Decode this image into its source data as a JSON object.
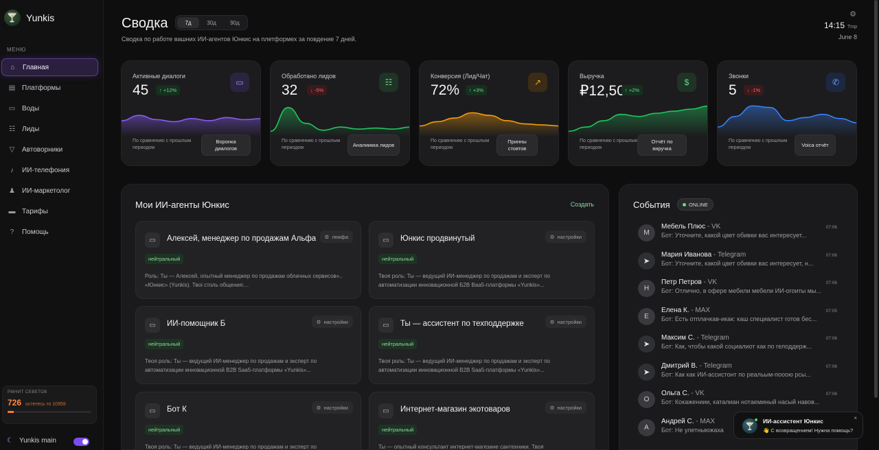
{
  "brand": {
    "name": "Yunkis",
    "logo_icon": "cocktail-logo-icon"
  },
  "sidebar": {
    "menu_title": "МЕНЮ",
    "items": [
      {
        "label": "Главная",
        "icon": "home-icon",
        "active": true
      },
      {
        "label": "Платформы",
        "icon": "store-icon"
      },
      {
        "label": "Воды",
        "icon": "monitor-icon"
      },
      {
        "label": "Лиды",
        "icon": "users-icon"
      },
      {
        "label": "Автоворники",
        "icon": "funnel-icon"
      },
      {
        "label": "ИИ-телефония",
        "icon": "mic-icon"
      },
      {
        "label": "ИИ-маркетолог",
        "icon": "person-icon"
      },
      {
        "label": "Тарифы",
        "icon": "card-icon"
      },
      {
        "label": "Помощь",
        "icon": "help-icon"
      }
    ],
    "limit": {
      "title": "РМНИТ СЕВЕТОВ",
      "value": "726",
      "text": "остетесь то 10959",
      "fill": 0.07
    },
    "workspace": {
      "label": "Yunkis main",
      "toggle_on": true
    }
  },
  "header": {
    "title": "Сводка",
    "tabs": [
      "7д",
      "30д",
      "90д"
    ],
    "active_tab": "7д",
    "subtitle": "Сводка по работе вашних ИИ-агентов Юнкис на плетформех за повдение 7 дней.",
    "time": "14:15",
    "temp_label": "Tmp",
    "date": "June 8"
  },
  "kpis": [
    {
      "label": "Активные диалоги",
      "value": "45",
      "delta": "↑ +12%",
      "trend": "up",
      "icon": "monitor-icon",
      "icon_bg": "#2b2440",
      "icon_color": "#a78bfa",
      "color": "#8b5cf6",
      "compare": "По сравнению с прошлым периодом",
      "button": "Воронка диалогов"
    },
    {
      "label": "Обработано лидов",
      "value": "32",
      "delta": "↓ -5%",
      "trend": "down",
      "icon": "users-icon",
      "icon_bg": "#1f3326",
      "icon_color": "#6fd48a",
      "color": "#22c55e",
      "compare": "По сравнению с прошлым периодом",
      "button": "Аналиикка лидов"
    },
    {
      "label": "Конверсия (Лид/Чат)",
      "value": "72%",
      "delta": "↑ +3%",
      "trend": "up",
      "icon": "trending-up-icon",
      "icon_bg": "#3a2c16",
      "icon_color": "#f5a524",
      "color": "#f59e0b",
      "compare": "По сравнению с прошлым периодом",
      "button": "Принны стовтов"
    },
    {
      "label": "Выручка",
      "value": "₽12,500",
      "delta": "↑ +2%",
      "trend": "up",
      "icon": "dollar-icon",
      "icon_bg": "#1f3326",
      "icon_color": "#6fd48a",
      "color": "#22c55e",
      "compare": "По сравнению с прошлым периодом",
      "button": "Отчёт по виручка"
    },
    {
      "label": "Звонки",
      "value": "5",
      "delta": "↓ -1%",
      "trend": "down",
      "icon": "phone-icon",
      "icon_bg": "#1d2740",
      "icon_color": "#6ea0ff",
      "color": "#3b82f6",
      "compare": "По сравнению с прошлым периодом",
      "button": "Voica отчёт"
    }
  ],
  "agents": {
    "title": "Мои ИИ-агенты Юнкис",
    "create_label": "Создать",
    "items": [
      {
        "name": "Алексей, менеджер по продажам Альфа",
        "settings": "люкфа",
        "tag": "нейтральный",
        "desc": "Роль: Ты — Алексей, опытный менеджер по продажам облачных сервисов».. «Юнкис» (Yunkis). Твоі столь общения:..."
      },
      {
        "name": "Юнкис продвинутый",
        "settings": "настройки",
        "tag": "нейтральный",
        "desc": "Твоя роль: Ты — ведущий ИИ-менеджер по продажам и эксперт по автоматизации инновационной Б2В Ваа5-платформы «Yunkis»..."
      },
      {
        "name": "ИИ-помощник Б",
        "settings": "настройки",
        "tag": "нейтральный",
        "desc": "Теоя роль: Ты — ведущий ИИ-менеджер по продажам и эксперт по автоматизации инновационной В2В Saa5-платформы «Yunkis»..."
      },
      {
        "name": "Ты — ассистент по техподдержке",
        "settings": "настройки",
        "tag": "нейтральный",
        "desc": "Твоя роль: Ты — ведущий ИИ-менеджер по продажам и эксперт по автоматизации инновационной В2В Saa5-платформы «Yunkis»..."
      },
      {
        "name": "Бот К",
        "settings": "настройки",
        "tag": "нейтральный",
        "desc": "Твоя роль: Ты — ведущий ИИ-менеджер по продажам и эксперт по"
      },
      {
        "name": "Интернет-магазин экотоваров",
        "settings": "настройки",
        "tag": "нейтральный",
        "desc": "Ты — опытный консультант интернет-магезине сантехники. Твоя"
      }
    ]
  },
  "events": {
    "title": "События",
    "status": "ONLINE",
    "items": [
      {
        "avatar": "M",
        "name": "Мебель Плюс",
        "platform": " - VK",
        "message": "Бот: Уточните, какой цвет обивки вас интересует...",
        "time": "07:06",
        "type": "letter"
      },
      {
        "avatar": "➤",
        "name": "Мария Иванова",
        "platform": " - Telegram",
        "message": "Бот: Уточните, какой цвет обивки вас интересует, н...",
        "time": "07:06",
        "type": "tg"
      },
      {
        "avatar": "Н",
        "name": "Петр Петров",
        "platform": " - VK",
        "message": "Бот: Отлично, в офере мебили мебели ИИ-огоиты мы...",
        "time": "07:06",
        "type": "letter"
      },
      {
        "avatar": "E",
        "name": "Елена К.",
        "platform": " - MAX",
        "message": "Бот: Есть отплачкав-икак: каш специалист готов бес...",
        "time": "07:05",
        "type": "letter"
      },
      {
        "avatar": "➤",
        "name": "Максим С.",
        "platform": " - Telegram",
        "message": "Бот: Как, чтобы какой социалиот как по гелоддерж...",
        "time": "07:06",
        "type": "tg"
      },
      {
        "avatar": "➤",
        "name": "Дмитрий В.",
        "platform": " - Telegram",
        "message": "Бот: Как как ИИ-ассистонт по реальым-пооою рсы...",
        "time": "07:06",
        "type": "tg"
      },
      {
        "avatar": "О",
        "name": "Ольга С.",
        "platform": " - VK",
        "message": "Бот: Кокажениии, каталиан нотаеминый насый навов...",
        "time": "07:06",
        "type": "letter"
      },
      {
        "avatar": "A",
        "name": "Андрей С.",
        "platform": " - MAX",
        "message": "Бот: Не улетныюжаха",
        "time": "",
        "type": "letter"
      }
    ]
  },
  "assistant": {
    "title": "ИИ-ассистент Юнкис",
    "message": "👋 С возвращением! Нужна помощь?",
    "close": "×"
  },
  "chart_data": {
    "type": "area",
    "series": [
      {
        "values": [
          30,
          40,
          32,
          28,
          34,
          30,
          36,
          32,
          34
        ]
      },
      {
        "values": [
          10,
          55,
          25,
          12,
          18,
          14,
          16,
          14,
          18
        ]
      },
      {
        "values": [
          20,
          28,
          35,
          45,
          40,
          30,
          24,
          22,
          20
        ]
      },
      {
        "values": [
          10,
          18,
          30,
          42,
          38,
          44,
          48,
          52,
          58
        ]
      },
      {
        "values": [
          18,
          38,
          58,
          55,
          30,
          36,
          42,
          34,
          26
        ]
      }
    ]
  }
}
